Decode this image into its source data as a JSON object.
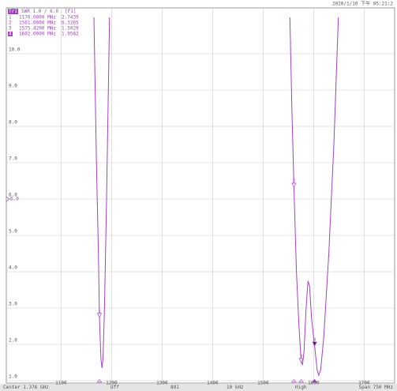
{
  "chart_data": {
    "type": "line",
    "timestamp": "2020/1/10 下午 05:21:2",
    "trace_label": "Tr1",
    "trace_format": "SWR 1.0 / 6.0",
    "trace_channel": "[F1]",
    "markers": [
      {
        "label": "1",
        "freq": 1176,
        "freq_label": "1176.0000 MHz",
        "value": 2.7439
      },
      {
        "label": "2",
        "freq": 1561,
        "freq_label": "1561.0000 MHz",
        "value": 6.3265
      },
      {
        "label": "3",
        "freq": 1575.42,
        "freq_label": "1575.4200 MHz",
        "value": 1.5029
      },
      {
        "label": "4",
        "freq": 1602,
        "freq_label": "1602.0000 MHz",
        "value": 1.9582
      }
    ],
    "x": [
      1165,
      1170,
      1174,
      1176,
      1179,
      1181,
      1183,
      1186,
      1190,
      1196,
      null,
      1553,
      1557,
      1561,
      1566,
      1571,
      1575.42,
      1578,
      1581,
      1585,
      1589,
      1592,
      1596,
      1602,
      1607,
      1610,
      1614,
      1620,
      1630,
      1640,
      1649
    ],
    "series": [
      {
        "name": "SWR",
        "color": "#a43fc4",
        "values": [
          11,
          7,
          4.5,
          2.74,
          1.6,
          1.35,
          1.6,
          3,
          6,
          11,
          null,
          11,
          8.5,
          6.33,
          4,
          2.5,
          1.5,
          1.45,
          1.8,
          3,
          3.75,
          3.6,
          2.7,
          1.96,
          1.3,
          1.15,
          1.3,
          2.2,
          4.5,
          7.5,
          11
        ]
      }
    ],
    "xlim": [
      1001,
      1751
    ],
    "ylim": [
      1,
      11
    ],
    "xticks": [
      1100,
      1200,
      1300,
      1400,
      1500,
      1600,
      1700
    ],
    "yticks": [
      {
        "value": 1,
        "label": "1.0"
      },
      {
        "value": 2,
        "label": "2.0"
      },
      {
        "value": 3,
        "label": "3.0"
      },
      {
        "value": 4,
        "label": "4.0"
      },
      {
        "value": 5,
        "label": "5.0"
      },
      {
        "value": 6,
        "label": "6.0"
      },
      {
        "value": 7,
        "label": "7.0"
      },
      {
        "value": 8,
        "label": "8.0"
      },
      {
        "value": 9,
        "label": "9.0"
      },
      {
        "value": 10,
        "label": "10.0"
      }
    ],
    "reference": 6,
    "grid": true,
    "status": [
      "Center 1.376 GHz",
      "Off",
      "801",
      "10 kHz",
      "High",
      "Span 750 MHz"
    ]
  }
}
